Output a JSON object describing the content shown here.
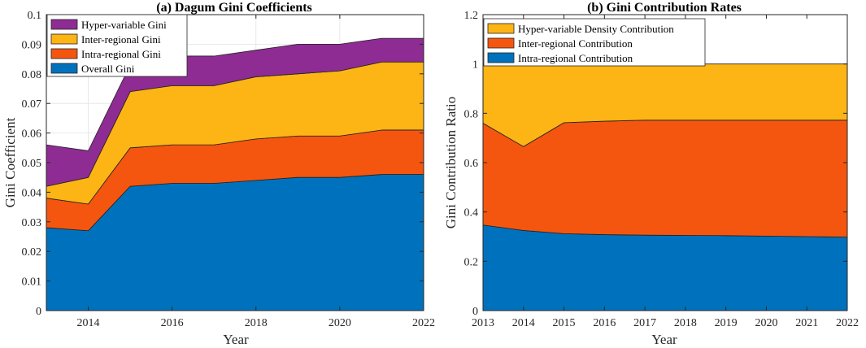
{
  "chart_data": [
    {
      "type": "area",
      "stacked": true,
      "title": "(a) Dagum Gini Coefficients",
      "xlabel": "Year",
      "ylabel": "Gini Coefficient",
      "xlim": [
        2013,
        2022
      ],
      "ylim": [
        0,
        0.1
      ],
      "grid": true,
      "x": [
        2013,
        2014,
        2015,
        2016,
        2017,
        2018,
        2019,
        2020,
        2021,
        2022
      ],
      "xticks": [
        "2014",
        "2016",
        "2018",
        "2020",
        "2022"
      ],
      "yticks": [
        "0",
        "0.01",
        "0.02",
        "0.03",
        "0.04",
        "0.05",
        "0.06",
        "0.07",
        "0.08",
        "0.09",
        "0.1"
      ],
      "legend_position": "top-left",
      "series": [
        {
          "name": "Overall Gini",
          "color": "#0072BD",
          "values": [
            0.028,
            0.027,
            0.042,
            0.043,
            0.043,
            0.044,
            0.045,
            0.045,
            0.046,
            0.046
          ]
        },
        {
          "name": "Intra-regional Gini",
          "color": "#F4560F",
          "values": [
            0.01,
            0.009,
            0.013,
            0.013,
            0.013,
            0.014,
            0.014,
            0.014,
            0.015,
            0.015
          ]
        },
        {
          "name": "Inter-regional Gini",
          "color": "#FDB415",
          "values": [
            0.004,
            0.009,
            0.019,
            0.02,
            0.02,
            0.021,
            0.021,
            0.022,
            0.023,
            0.023
          ]
        },
        {
          "name": "Hyper-variable Gini",
          "color": "#8E2C93",
          "values": [
            0.014,
            0.009,
            0.009,
            0.01,
            0.01,
            0.009,
            0.01,
            0.009,
            0.008,
            0.008
          ]
        }
      ]
    },
    {
      "type": "area",
      "stacked": true,
      "title": "(b) Gini Contribution Rates",
      "xlabel": "Year",
      "ylabel": "Gini Contribution Ratio",
      "xlim": [
        2013,
        2022
      ],
      "ylim": [
        0,
        1.2
      ],
      "grid": false,
      "x": [
        2013,
        2014,
        2015,
        2016,
        2017,
        2018,
        2019,
        2020,
        2021,
        2022
      ],
      "xticks": [
        "2013",
        "2014",
        "2015",
        "2016",
        "2017",
        "2018",
        "2019",
        "2020",
        "2021",
        "2022"
      ],
      "yticks": [
        "0",
        "0.2",
        "0.4",
        "0.6",
        "0.8",
        "1",
        "1.2"
      ],
      "legend_position": "top-left",
      "series": [
        {
          "name": "Intra-regional Contribution",
          "color": "#0072BD",
          "values": [
            0.347,
            0.325,
            0.312,
            0.308,
            0.306,
            0.305,
            0.304,
            0.302,
            0.3,
            0.298
          ]
        },
        {
          "name": "Inter-regional Contribution",
          "color": "#F4560F",
          "values": [
            0.413,
            0.34,
            0.45,
            0.46,
            0.466,
            0.467,
            0.468,
            0.47,
            0.472,
            0.474
          ]
        },
        {
          "name": "Hyper-variable Density Contribution",
          "color": "#FDB415",
          "values": [
            0.24,
            0.335,
            0.238,
            0.232,
            0.228,
            0.228,
            0.228,
            0.228,
            0.228,
            0.228
          ]
        }
      ],
      "legend_order": [
        "Hyper-variable Density Contribution",
        "Inter-regional Contribution",
        "Intra-regional Contribution"
      ]
    }
  ]
}
